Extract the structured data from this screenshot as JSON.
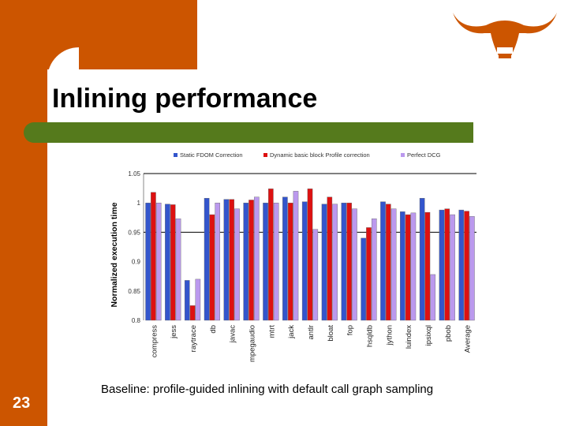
{
  "slide": {
    "title": "Inlining performance",
    "caption": "Baseline: profile-guided inlining with default call graph sampling",
    "number": "23"
  },
  "colors": {
    "accent": "#cc5500",
    "rule": "#557a1c",
    "static": "#3355cc",
    "dynamic": "#dd1111",
    "perfect": "#bb99ee"
  },
  "icons": {
    "logo": "longhorn-logo-icon"
  },
  "chart_data": {
    "type": "bar",
    "title": "",
    "xlabel": "",
    "ylabel": "Normalized execution time",
    "ylim": [
      0.8,
      1.05
    ],
    "yticks": [
      "0.8",
      "0.85",
      "0.9",
      "0.95",
      "1",
      "1.05"
    ],
    "reference_lines": [
      0.95,
      1.05
    ],
    "legend_position": "top",
    "categories": [
      "compress",
      "jess",
      "raytrace",
      "db",
      "javac",
      "mpegaudio",
      "mtrt",
      "jack",
      "antlr",
      "bloat",
      "fop",
      "hsqldb",
      "jython",
      "luindex",
      "ipsixql",
      "pbob",
      "Average"
    ],
    "series": [
      {
        "name": "Static FDOM Correction",
        "values": [
          1.0,
          0.998,
          0.868,
          1.008,
          1.006,
          1.0,
          1.0,
          1.01,
          1.002,
          0.998,
          1.0,
          0.94,
          1.002,
          0.985,
          1.008,
          0.988,
          0.988
        ]
      },
      {
        "name": "Dynamic basic block Profile correction",
        "values": [
          1.018,
          0.997,
          0.825,
          0.98,
          1.006,
          1.005,
          1.024,
          1.0,
          1.024,
          1.01,
          1.0,
          0.958,
          0.998,
          0.98,
          0.984,
          0.99,
          0.986
        ]
      },
      {
        "name": "Perfect DCG",
        "values": [
          1.0,
          0.973,
          0.87,
          1.0,
          0.99,
          1.01,
          1.0,
          1.02,
          0.955,
          0.998,
          0.99,
          0.973,
          0.99,
          0.983,
          0.878,
          0.98,
          0.977
        ]
      }
    ]
  }
}
